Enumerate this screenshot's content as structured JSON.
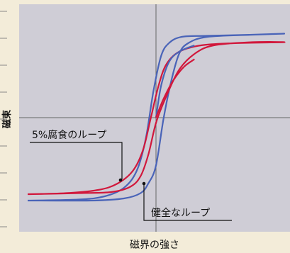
{
  "chart_data": {
    "type": "line",
    "xlabel": "磁界の強さ",
    "ylabel": "磁束",
    "xlim": [
      -1,
      1
    ],
    "ylim": [
      -1,
      1
    ],
    "grid": false,
    "series": [
      {
        "name": "健全なループ",
        "color": "#4a64b8",
        "points": [
          [
            -1.0,
            -0.78
          ],
          [
            -0.6,
            -0.77
          ],
          [
            -0.4,
            -0.74
          ],
          [
            -0.25,
            -0.66
          ],
          [
            -0.15,
            -0.5
          ],
          [
            -0.08,
            -0.2
          ],
          [
            -0.02,
            0.25
          ],
          [
            0.04,
            0.58
          ],
          [
            0.1,
            0.7
          ],
          [
            0.2,
            0.76
          ],
          [
            0.4,
            0.77
          ],
          [
            0.75,
            0.78
          ],
          [
            1.0,
            0.79
          ],
          [
            0.75,
            0.78
          ],
          [
            0.4,
            0.76
          ],
          [
            0.25,
            0.7
          ],
          [
            0.18,
            0.6
          ],
          [
            0.12,
            0.35
          ],
          [
            0.06,
            0.0
          ],
          [
            0.0,
            -0.45
          ],
          [
            -0.06,
            -0.62
          ],
          [
            -0.12,
            -0.71
          ],
          [
            -0.25,
            -0.76
          ],
          [
            -0.5,
            -0.78
          ],
          [
            -1.0,
            -0.78
          ]
        ]
      },
      {
        "name": "5%腐食のループ",
        "color": "#d1183c",
        "points": [
          [
            -1.0,
            -0.72
          ],
          [
            -0.7,
            -0.71
          ],
          [
            -0.45,
            -0.68
          ],
          [
            -0.3,
            -0.62
          ],
          [
            -0.18,
            -0.5
          ],
          [
            -0.1,
            -0.3
          ],
          [
            -0.04,
            0.0
          ],
          [
            0.02,
            0.3
          ],
          [
            0.08,
            0.5
          ],
          [
            0.18,
            0.62
          ],
          [
            0.35,
            0.68
          ],
          [
            0.6,
            0.7
          ],
          [
            1.0,
            0.71
          ],
          [
            0.75,
            0.71
          ],
          [
            0.45,
            0.68
          ],
          [
            0.3,
            0.6
          ],
          [
            0.18,
            0.45
          ],
          [
            0.08,
            0.2
          ],
          [
            0.0,
            -0.05
          ],
          [
            -0.06,
            -0.35
          ],
          [
            -0.12,
            -0.55
          ],
          [
            -0.2,
            -0.65
          ],
          [
            -0.35,
            -0.7
          ],
          [
            -0.6,
            -0.71
          ],
          [
            -1.0,
            -0.72
          ]
        ]
      },
      {
        "name": "",
        "color": "#4a64b8",
        "points": [
          [
            0.0,
            0.0
          ],
          [
            0.04,
            0.3
          ],
          [
            0.1,
            0.52
          ],
          [
            0.18,
            0.62
          ],
          [
            0.3,
            0.68
          ]
        ]
      },
      {
        "name": "",
        "color": "#d1183c",
        "points": [
          [
            0.0,
            0.0
          ],
          [
            0.06,
            0.18
          ],
          [
            0.14,
            0.36
          ],
          [
            0.22,
            0.48
          ],
          [
            0.3,
            0.55
          ]
        ]
      }
    ],
    "annotations": [
      {
        "text": "5%腐食のループ",
        "target": [
          -0.12,
          -0.55
        ]
      },
      {
        "text": "健全なループ",
        "target": [
          -0.05,
          -0.62
        ]
      }
    ]
  },
  "colors": {
    "plot_background": "#cfcdd6",
    "page_background": "#f3ecd9",
    "axis_line": "#666666",
    "tick_mark": "#888888"
  }
}
